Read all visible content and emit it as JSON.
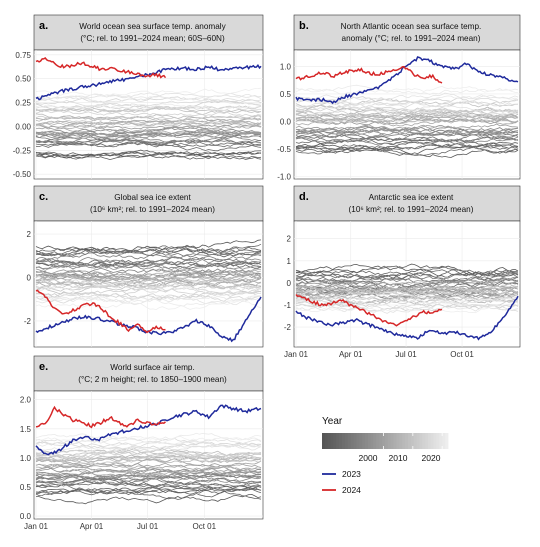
{
  "figure": {
    "legend": {
      "title": "Year",
      "colorbar_ticks": [
        "2000",
        "2010",
        "2020"
      ],
      "colorbar_range": [
        1979,
        2022
      ],
      "gray_dark": "#555555",
      "gray_light": "#eeeeee",
      "items": [
        {
          "label": "2023",
          "color": "#1f2a9c"
        },
        {
          "label": "2024",
          "color": "#d62728"
        }
      ]
    },
    "x_ticks": [
      "Jan 01",
      "Apr 01",
      "Jul 01",
      "Oct 01"
    ]
  },
  "chart_data": [
    {
      "id": "a",
      "type": "line",
      "label": "a.",
      "title_lines": [
        "World ocean sea surface temp. anomaly",
        "(°C; rel. to 1991–2024 mean; 60S–60N)"
      ],
      "ylim": [
        -0.55,
        0.8
      ],
      "yticks": [
        -0.5,
        -0.25,
        0.0,
        0.25,
        0.5,
        0.75
      ],
      "ytick_labels": [
        "-0.50",
        "-0.25",
        "0.00",
        "0.25",
        "0.50",
        "0.75"
      ],
      "show_xticks": false,
      "background": {
        "count": 44,
        "first_year": 1981,
        "start": -0.32,
        "end": 0.3,
        "noise": 0.06
      },
      "series": [
        {
          "name": "2023",
          "days": [
            0,
            20,
            40,
            60,
            80,
            100,
            120,
            140,
            160,
            180,
            200,
            220,
            240,
            260,
            280,
            300,
            320,
            340,
            365
          ],
          "values": [
            0.28,
            0.33,
            0.37,
            0.39,
            0.42,
            0.44,
            0.47,
            0.49,
            0.51,
            0.54,
            0.58,
            0.6,
            0.61,
            0.6,
            0.62,
            0.59,
            0.6,
            0.62,
            0.63
          ]
        },
        {
          "name": "2024",
          "days": [
            0,
            15,
            30,
            45,
            60,
            75,
            90,
            105,
            120,
            135,
            150,
            165,
            180,
            195,
            210
          ],
          "values": [
            0.68,
            0.7,
            0.66,
            0.62,
            0.64,
            0.66,
            0.63,
            0.6,
            0.61,
            0.58,
            0.57,
            0.55,
            0.53,
            0.54,
            0.51
          ]
        }
      ]
    },
    {
      "id": "b",
      "type": "line",
      "label": "b.",
      "title_lines": [
        "North Atlantic ocean sea surface temp.",
        "anomaly (°C; rel. to 1991–2024 mean)"
      ],
      "ylim": [
        -1.05,
        1.3
      ],
      "yticks": [
        -1.0,
        -0.5,
        0.0,
        0.5,
        1.0
      ],
      "ytick_labels": [
        "-1.0",
        "-0.5",
        "0.0",
        "0.5",
        "1.0"
      ],
      "show_xticks": false,
      "background": {
        "count": 44,
        "first_year": 1981,
        "start": -0.55,
        "end": 0.5,
        "noise": 0.12
      },
      "series": [
        {
          "name": "2023",
          "days": [
            0,
            20,
            40,
            60,
            80,
            100,
            120,
            140,
            160,
            180,
            200,
            220,
            240,
            260,
            280,
            300,
            320,
            340,
            365
          ],
          "values": [
            0.42,
            0.38,
            0.4,
            0.35,
            0.45,
            0.5,
            0.55,
            0.65,
            0.8,
            1.0,
            1.15,
            1.1,
            1.0,
            0.95,
            1.05,
            0.9,
            0.85,
            0.8,
            0.72
          ]
        },
        {
          "name": "2024",
          "days": [
            0,
            15,
            30,
            45,
            60,
            75,
            90,
            105,
            120,
            135,
            150,
            165,
            180,
            195,
            210,
            225,
            240
          ],
          "values": [
            0.78,
            0.8,
            0.85,
            0.9,
            0.82,
            0.88,
            0.92,
            0.95,
            0.88,
            0.85,
            0.9,
            0.95,
            0.98,
            0.85,
            0.8,
            0.82,
            0.7
          ]
        }
      ]
    },
    {
      "id": "c",
      "type": "line",
      "label": "c.",
      "title_lines": [
        "Global sea ice extent",
        "(10⁶ km²; rel. to 1991–2024 mean)"
      ],
      "ylim": [
        -3.2,
        2.6
      ],
      "yticks": [
        -2,
        0,
        2
      ],
      "ytick_labels": [
        "-2",
        "0",
        "2"
      ],
      "show_xticks": false,
      "background": {
        "count": 44,
        "first_year": 1981,
        "start": 1.2,
        "end": -1.0,
        "noise": 0.35
      },
      "series": [
        {
          "name": "2023",
          "days": [
            0,
            20,
            40,
            60,
            80,
            100,
            120,
            140,
            160,
            180,
            200,
            220,
            240,
            260,
            280,
            300,
            320,
            340,
            365
          ],
          "values": [
            -2.5,
            -2.3,
            -2.1,
            -1.9,
            -1.8,
            -1.9,
            -2.0,
            -2.2,
            -2.3,
            -2.5,
            -2.6,
            -2.5,
            -2.3,
            -2.0,
            -2.2,
            -2.7,
            -2.9,
            -2.0,
            -0.9
          ]
        },
        {
          "name": "2024",
          "days": [
            0,
            15,
            30,
            45,
            60,
            75,
            90,
            105,
            120,
            135,
            150,
            165,
            180,
            195,
            210
          ],
          "values": [
            -0.6,
            -0.9,
            -1.4,
            -1.7,
            -1.5,
            -1.3,
            -1.2,
            -1.4,
            -1.8,
            -2.1,
            -2.4,
            -2.2,
            -2.5,
            -2.3,
            -2.4
          ]
        }
      ]
    },
    {
      "id": "d",
      "type": "line",
      "label": "d.",
      "title_lines": [
        "Antarctic sea ice extent",
        "(10⁶ km²; rel. to 1991–2024 mean)"
      ],
      "ylim": [
        -2.9,
        2.8
      ],
      "yticks": [
        -2,
        -1,
        0,
        1,
        2
      ],
      "ytick_labels": [
        "-2",
        "-1",
        "0",
        "1",
        "2"
      ],
      "show_xticks": true,
      "background": {
        "count": 44,
        "first_year": 1981,
        "start": 0.2,
        "end": -0.9,
        "noise": 0.35
      },
      "series": [
        {
          "name": "2023",
          "days": [
            0,
            20,
            40,
            60,
            80,
            100,
            120,
            140,
            160,
            180,
            200,
            220,
            240,
            260,
            280,
            300,
            320,
            340,
            365
          ],
          "values": [
            -1.3,
            -1.6,
            -1.8,
            -1.9,
            -1.8,
            -1.7,
            -1.9,
            -2.1,
            -2.3,
            -2.4,
            -2.5,
            -2.1,
            -2.3,
            -2.2,
            -2.4,
            -2.5,
            -2.2,
            -1.6,
            -0.6
          ]
        },
        {
          "name": "2024",
          "days": [
            0,
            15,
            30,
            45,
            60,
            75,
            90,
            105,
            120,
            135,
            150,
            165,
            180,
            195,
            210,
            225,
            240
          ],
          "values": [
            -0.5,
            -0.7,
            -0.9,
            -1.0,
            -0.9,
            -0.8,
            -1.0,
            -1.2,
            -1.4,
            -1.6,
            -1.8,
            -1.9,
            -1.7,
            -1.5,
            -1.3,
            -1.4,
            -1.2
          ]
        }
      ]
    },
    {
      "id": "e",
      "type": "line",
      "label": "e.",
      "title_lines": [
        "World surface air temp.",
        "(°C; 2 m height; rel. to 1850–1900 mean)"
      ],
      "ylim": [
        -0.05,
        2.15
      ],
      "yticks": [
        0.0,
        0.5,
        1.0,
        1.5,
        2.0
      ],
      "ytick_labels": [
        "0.0",
        "0.5",
        "1.0",
        "1.5",
        "2.0"
      ],
      "show_xticks": true,
      "background": {
        "count": 44,
        "first_year": 1981,
        "start": 0.4,
        "end": 1.3,
        "noise": 0.11
      },
      "series": [
        {
          "name": "2023",
          "days": [
            0,
            20,
            40,
            60,
            80,
            100,
            120,
            140,
            160,
            180,
            200,
            220,
            240,
            260,
            280,
            300,
            320,
            340,
            365
          ],
          "values": [
            1.2,
            1.05,
            1.15,
            1.3,
            1.35,
            1.3,
            1.4,
            1.45,
            1.5,
            1.55,
            1.6,
            1.7,
            1.75,
            1.8,
            1.7,
            1.9,
            1.85,
            1.8,
            1.85
          ]
        },
        {
          "name": "2024",
          "days": [
            0,
            15,
            30,
            45,
            60,
            75,
            90,
            105,
            120,
            135,
            150,
            165,
            180,
            195,
            210
          ],
          "values": [
            1.55,
            1.6,
            1.85,
            1.75,
            1.65,
            1.6,
            1.55,
            1.6,
            1.7,
            1.6,
            1.55,
            1.65,
            1.6,
            1.58,
            1.62
          ]
        }
      ]
    }
  ]
}
